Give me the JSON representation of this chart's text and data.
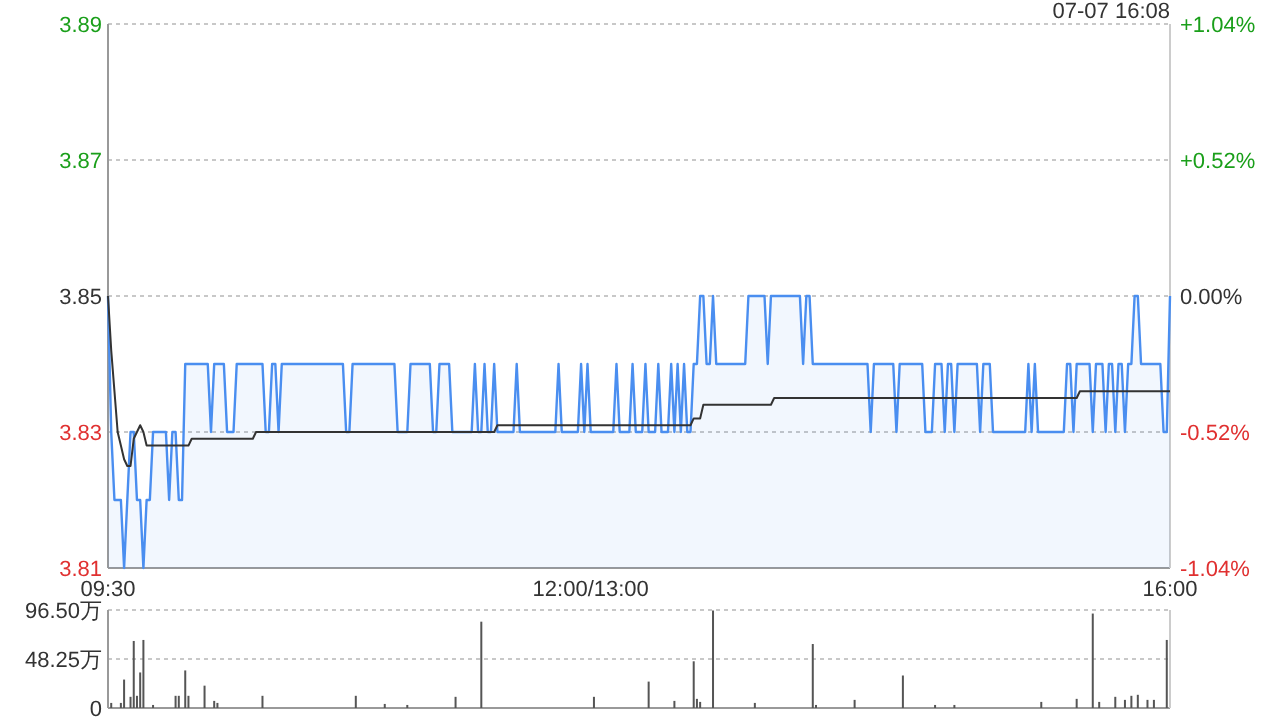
{
  "chart_data": [
    {
      "type": "line",
      "ylim": [
        3.81,
        3.89
      ],
      "y2lim": [
        -1.04,
        1.04
      ],
      "grid": "y",
      "categories": [
        "09:30",
        null,
        null,
        null,
        null,
        null,
        null,
        null,
        null,
        null,
        null,
        null,
        null,
        null,
        null,
        null,
        null,
        null,
        null,
        null,
        null,
        null,
        null,
        null,
        null,
        null,
        null,
        null,
        null,
        null,
        null,
        null,
        null,
        null,
        null,
        null,
        null,
        null,
        null,
        null,
        null,
        null,
        null,
        null,
        null,
        null,
        null,
        null,
        null,
        null,
        null,
        null,
        null,
        null,
        null,
        null,
        null,
        null,
        null,
        null,
        null,
        null,
        null,
        null,
        null,
        null,
        null,
        null,
        null,
        null,
        null,
        null,
        null,
        null,
        null,
        null,
        null,
        null,
        null,
        null,
        null,
        null,
        null,
        null,
        null,
        null,
        null,
        null,
        null,
        null,
        null,
        null,
        null,
        null,
        null,
        null,
        null,
        null,
        null,
        null,
        null,
        null,
        null,
        null,
        null,
        null,
        null,
        null,
        null,
        null,
        null,
        null,
        null,
        null,
        null,
        null,
        null,
        null,
        null,
        null,
        null,
        null,
        null,
        null,
        null,
        null,
        null,
        null,
        null,
        null,
        null,
        null,
        null,
        null,
        null,
        null,
        null,
        null,
        null,
        null,
        null,
        null,
        null,
        null,
        null,
        null,
        null,
        null,
        null,
        null,
        "12:00/13:00",
        null,
        null,
        null,
        null,
        null,
        null,
        null,
        null,
        null,
        null,
        null,
        null,
        null,
        null,
        null,
        null,
        null,
        null,
        null,
        null,
        null,
        null,
        null,
        null,
        null,
        null,
        null,
        null,
        null,
        null,
        null,
        null,
        null,
        null,
        null,
        null,
        null,
        null,
        null,
        null,
        null,
        null,
        null,
        null,
        null,
        null,
        null,
        null,
        null,
        null,
        null,
        null,
        null,
        null,
        null,
        null,
        null,
        null,
        null,
        null,
        null,
        null,
        null,
        null,
        null,
        null,
        null,
        null,
        null,
        null,
        null,
        null,
        null,
        null,
        null,
        null,
        null,
        null,
        null,
        null,
        null,
        null,
        null,
        null,
        null,
        null,
        null,
        null,
        null,
        null,
        null,
        null,
        null,
        null,
        null,
        null,
        null,
        null,
        null,
        null,
        null,
        null,
        null,
        null,
        null,
        null,
        null,
        null,
        null,
        null,
        null,
        null,
        null,
        null,
        null,
        null,
        null,
        null,
        null,
        null,
        null,
        null,
        null,
        null,
        null,
        null,
        null,
        null,
        null,
        null,
        null,
        null,
        null,
        null,
        null,
        null,
        null,
        null,
        null,
        null,
        null,
        null,
        null,
        null,
        null,
        null,
        null,
        null,
        null,
        null,
        null,
        null,
        null,
        null,
        null,
        null,
        null,
        null,
        null,
        null,
        null,
        null,
        null,
        null,
        null,
        null,
        null,
        null,
        null,
        null,
        null,
        null,
        null,
        null,
        null,
        null,
        null,
        null,
        null,
        "16:00"
      ],
      "yticks": [
        3.81,
        3.83,
        3.85,
        3.87,
        3.89
      ],
      "y2ticks": [
        {
          "value": -1.04,
          "label": "-1.04%"
        },
        {
          "value": -0.52,
          "label": "-0.52%"
        },
        {
          "value": 0,
          "label": "0.00%"
        },
        {
          "value": 0.52,
          "label": "+0.52%"
        },
        {
          "value": 1.04,
          "label": "+1.04%"
        }
      ],
      "annotations": [
        "07-07 16:08"
      ],
      "series": [
        {
          "type": "area",
          "color": "#4a8ef0",
          "values": [
            3.85,
            3.83,
            3.82,
            3.82,
            3.82,
            3.81,
            3.82,
            3.83,
            3.83,
            3.82,
            3.82,
            3.81,
            3.82,
            3.82,
            3.83,
            3.83,
            3.83,
            3.83,
            3.83,
            3.82,
            3.83,
            3.83,
            3.82,
            3.82,
            3.84,
            3.84,
            3.84,
            3.84,
            3.84,
            3.84,
            3.84,
            3.84,
            3.83,
            3.84,
            3.84,
            3.84,
            3.84,
            3.83,
            3.83,
            3.83,
            3.84,
            3.84,
            3.84,
            3.84,
            3.84,
            3.84,
            3.84,
            3.84,
            3.84,
            3.83,
            3.83,
            3.84,
            3.84,
            3.83,
            3.84,
            3.84,
            3.84,
            3.84,
            3.84,
            3.84,
            3.84,
            3.84,
            3.84,
            3.84,
            3.84,
            3.84,
            3.84,
            3.84,
            3.84,
            3.84,
            3.84,
            3.84,
            3.84,
            3.84,
            3.83,
            3.83,
            3.84,
            3.84,
            3.84,
            3.84,
            3.84,
            3.84,
            3.84,
            3.84,
            3.84,
            3.84,
            3.84,
            3.84,
            3.84,
            3.84,
            3.83,
            3.83,
            3.83,
            3.83,
            3.84,
            3.84,
            3.84,
            3.84,
            3.84,
            3.84,
            3.84,
            3.83,
            3.83,
            3.84,
            3.84,
            3.84,
            3.84,
            3.83,
            3.83,
            3.83,
            3.83,
            3.83,
            3.83,
            3.83,
            3.84,
            3.83,
            3.83,
            3.84,
            3.83,
            3.83,
            3.84,
            3.83,
            3.83,
            3.83,
            3.83,
            3.83,
            3.83,
            3.84,
            3.83,
            3.83,
            3.83,
            3.83,
            3.83,
            3.83,
            3.83,
            3.83,
            3.83,
            3.83,
            3.83,
            3.83,
            3.84,
            3.83,
            3.83,
            3.83,
            3.83,
            3.83,
            3.83,
            3.84,
            3.83,
            3.84,
            3.83,
            3.83,
            3.83,
            3.83,
            3.83,
            3.83,
            3.83,
            3.83,
            3.84,
            3.83,
            3.83,
            3.83,
            3.83,
            3.84,
            3.83,
            3.83,
            3.83,
            3.84,
            3.83,
            3.83,
            3.83,
            3.84,
            3.83,
            3.83,
            3.83,
            3.84,
            3.83,
            3.84,
            3.83,
            3.84,
            3.83,
            3.83,
            3.84,
            3.84,
            3.85,
            3.85,
            3.84,
            3.84,
            3.85,
            3.84,
            3.84,
            3.84,
            3.84,
            3.84,
            3.84,
            3.84,
            3.84,
            3.84,
            3.84,
            3.85,
            3.85,
            3.85,
            3.85,
            3.85,
            3.85,
            3.84,
            3.85,
            3.85,
            3.85,
            3.85,
            3.85,
            3.85,
            3.85,
            3.85,
            3.85,
            3.85,
            3.84,
            3.85,
            3.85,
            3.84,
            3.84,
            3.84,
            3.84,
            3.84,
            3.84,
            3.84,
            3.84,
            3.84,
            3.84,
            3.84,
            3.84,
            3.84,
            3.84,
            3.84,
            3.84,
            3.84,
            3.84,
            3.83,
            3.84,
            3.84,
            3.84,
            3.84,
            3.84,
            3.84,
            3.84,
            3.83,
            3.84,
            3.84,
            3.84,
            3.84,
            3.84,
            3.84,
            3.84,
            3.84,
            3.83,
            3.83,
            3.83,
            3.84,
            3.84,
            3.84,
            3.83,
            3.84,
            3.84,
            3.83,
            3.84,
            3.84,
            3.84,
            3.84,
            3.84,
            3.84,
            3.84,
            3.83,
            3.84,
            3.84,
            3.84,
            3.83,
            3.83,
            3.83,
            3.83,
            3.83,
            3.83,
            3.83,
            3.83,
            3.83,
            3.83,
            3.83,
            3.84,
            3.83,
            3.84,
            3.83,
            3.83,
            3.83,
            3.83,
            3.83,
            3.83,
            3.83,
            3.83,
            3.83,
            3.84,
            3.84,
            3.83,
            3.84,
            3.84,
            3.84,
            3.84,
            3.84,
            3.83,
            3.84,
            3.84,
            3.84,
            3.83,
            3.84,
            3.84,
            3.83,
            3.84,
            3.84,
            3.83,
            3.84,
            3.84,
            3.85,
            3.85,
            3.84,
            3.84,
            3.84,
            3.84,
            3.84,
            3.84,
            3.84,
            3.83,
            3.83,
            3.85
          ]
        },
        {
          "type": "line",
          "color": "#333333",
          "values": [
            3.85,
            3.842,
            3.836,
            3.83,
            3.828,
            3.826,
            3.825,
            3.825,
            3.829,
            3.83,
            3.831,
            3.83,
            3.828,
            3.828,
            3.828,
            3.828,
            3.828,
            3.828,
            3.828,
            3.828,
            3.828,
            3.828,
            3.828,
            3.828,
            3.828,
            3.828,
            3.829,
            3.829,
            3.829,
            3.829,
            3.829,
            3.829,
            3.829,
            3.829,
            3.829,
            3.829,
            3.829,
            3.829,
            3.829,
            3.829,
            3.829,
            3.829,
            3.829,
            3.829,
            3.829,
            3.829,
            3.83,
            3.83,
            3.83,
            3.83,
            3.83,
            3.83,
            3.83,
            3.83,
            3.83,
            3.83,
            3.83,
            3.83,
            3.83,
            3.83,
            3.83,
            3.83,
            3.83,
            3.83,
            3.83,
            3.83,
            3.83,
            3.83,
            3.83,
            3.83,
            3.83,
            3.83,
            3.83,
            3.83,
            3.83,
            3.83,
            3.83,
            3.83,
            3.83,
            3.83,
            3.83,
            3.83,
            3.83,
            3.83,
            3.83,
            3.83,
            3.83,
            3.83,
            3.83,
            3.83,
            3.83,
            3.83,
            3.83,
            3.83,
            3.83,
            3.83,
            3.83,
            3.83,
            3.83,
            3.83,
            3.83,
            3.83,
            3.83,
            3.83,
            3.83,
            3.83,
            3.83,
            3.83,
            3.83,
            3.83,
            3.83,
            3.83,
            3.83,
            3.83,
            3.83,
            3.83,
            3.83,
            3.83,
            3.83,
            3.83,
            3.83,
            3.831,
            3.831,
            3.831,
            3.831,
            3.831,
            3.831,
            3.831,
            3.831,
            3.831,
            3.831,
            3.831,
            3.831,
            3.831,
            3.831,
            3.831,
            3.831,
            3.831,
            3.831,
            3.831,
            3.831,
            3.831,
            3.831,
            3.831,
            3.831,
            3.831,
            3.831,
            3.831,
            3.831,
            3.831,
            3.831,
            3.831,
            3.831,
            3.831,
            3.831,
            3.831,
            3.831,
            3.831,
            3.831,
            3.831,
            3.831,
            3.831,
            3.831,
            3.831,
            3.831,
            3.831,
            3.831,
            3.831,
            3.831,
            3.831,
            3.831,
            3.831,
            3.831,
            3.831,
            3.831,
            3.831,
            3.831,
            3.831,
            3.831,
            3.831,
            3.831,
            3.831,
            3.832,
            3.832,
            3.832,
            3.834,
            3.834,
            3.834,
            3.834,
            3.834,
            3.834,
            3.834,
            3.834,
            3.834,
            3.834,
            3.834,
            3.834,
            3.834,
            3.834,
            3.834,
            3.834,
            3.834,
            3.834,
            3.834,
            3.834,
            3.834,
            3.834,
            3.835,
            3.835,
            3.835,
            3.835,
            3.835,
            3.835,
            3.835,
            3.835,
            3.835,
            3.835,
            3.835,
            3.835,
            3.835,
            3.835,
            3.835,
            3.835,
            3.835,
            3.835,
            3.835,
            3.835,
            3.835,
            3.835,
            3.835,
            3.835,
            3.835,
            3.835,
            3.835,
            3.835,
            3.835,
            3.835,
            3.835,
            3.835,
            3.835,
            3.835,
            3.835,
            3.835,
            3.835,
            3.835,
            3.835,
            3.835,
            3.835,
            3.835,
            3.835,
            3.835,
            3.835,
            3.835,
            3.835,
            3.835,
            3.835,
            3.835,
            3.835,
            3.835,
            3.835,
            3.835,
            3.835,
            3.835,
            3.835,
            3.835,
            3.835,
            3.835,
            3.835,
            3.835,
            3.835,
            3.835,
            3.835,
            3.835,
            3.835,
            3.835,
            3.835,
            3.835,
            3.835,
            3.835,
            3.835,
            3.835,
            3.835,
            3.835,
            3.835,
            3.835,
            3.835,
            3.835,
            3.835,
            3.835,
            3.835,
            3.835,
            3.835,
            3.835,
            3.835,
            3.835,
            3.835,
            3.835,
            3.835,
            3.835,
            3.835,
            3.835,
            3.835,
            3.836,
            3.836,
            3.836,
            3.836,
            3.836,
            3.836,
            3.836,
            3.836,
            3.836,
            3.836,
            3.836,
            3.836,
            3.836,
            3.836,
            3.836,
            3.836,
            3.836,
            3.836,
            3.836,
            3.836,
            3.836,
            3.836,
            3.836,
            3.836,
            3.836,
            3.836,
            3.836,
            3.836,
            3.836
          ]
        }
      ]
    },
    {
      "type": "bar",
      "ylim": [
        0,
        96.5
      ],
      "grid": "y",
      "tick_labels": "y",
      "color": "#555555",
      "categories": [
        null,
        null,
        null,
        null,
        null,
        null,
        null,
        null,
        null,
        null,
        null,
        null,
        null,
        null,
        null,
        null,
        null,
        null,
        null,
        null,
        null,
        null,
        null,
        null,
        null,
        null,
        null,
        null,
        null,
        null,
        null,
        null,
        null,
        null,
        null,
        null,
        null,
        null,
        null,
        null,
        null,
        null,
        null,
        null,
        null,
        null,
        null,
        null,
        null,
        null,
        null,
        null,
        null,
        null,
        null,
        null,
        null,
        null,
        null,
        null,
        null,
        null,
        null,
        null,
        null,
        null,
        null,
        null,
        null,
        null,
        null,
        null,
        null,
        null,
        null,
        null,
        null,
        null,
        null,
        null,
        null,
        null,
        null,
        null,
        null,
        null,
        null,
        null,
        null,
        null,
        null,
        null,
        null,
        null,
        null,
        null,
        null,
        null,
        null,
        null,
        null,
        null,
        null,
        null,
        null,
        null,
        null,
        null,
        null,
        null,
        null,
        null,
        null,
        null,
        null,
        null,
        null,
        null,
        null,
        null,
        null,
        null,
        null,
        null,
        null,
        null,
        null,
        null,
        null,
        null,
        null,
        null,
        null,
        null,
        null,
        null,
        null,
        null,
        null,
        null,
        null,
        null,
        null,
        null,
        null,
        null,
        null,
        null,
        null,
        null,
        null,
        null,
        null,
        null,
        null,
        null,
        null,
        null,
        null,
        null,
        null,
        null,
        null,
        null,
        null,
        null,
        null,
        null,
        null,
        null,
        null,
        null,
        null,
        null,
        null,
        null,
        null,
        null,
        null,
        null,
        null,
        null,
        null,
        null,
        null,
        null,
        null,
        null,
        null,
        null,
        null,
        null,
        null,
        null,
        null,
        null,
        null,
        null,
        null,
        null,
        null,
        null,
        null,
        null,
        null,
        null,
        null,
        null,
        null,
        null,
        null,
        null,
        null,
        null,
        null,
        null,
        null,
        null,
        null,
        null,
        null,
        null,
        null,
        null,
        null,
        null,
        null,
        null,
        null,
        null,
        null,
        null,
        null,
        null,
        null,
        null,
        null,
        null,
        null,
        null,
        null,
        null,
        null,
        null,
        null,
        null,
        null,
        null,
        null,
        null,
        null,
        null,
        null,
        null,
        null,
        null,
        null,
        null,
        null,
        null,
        null,
        null,
        null,
        null,
        null,
        null,
        null,
        null,
        null,
        null,
        null,
        null,
        null,
        null,
        null,
        null,
        null,
        null,
        null,
        null,
        null,
        null,
        null,
        null,
        null,
        null,
        null,
        null,
        null,
        null,
        null,
        null,
        null,
        null,
        null,
        null,
        null,
        null,
        null,
        null,
        null,
        null,
        null,
        null,
        null,
        null,
        null,
        null,
        null,
        null,
        null,
        null,
        null,
        null,
        null,
        null,
        null,
        null,
        null,
        null,
        null,
        null,
        null,
        null,
        null,
        null,
        null,
        null,
        null,
        null,
        null
      ],
      "yticks": [
        0,
        {
          "value": 48.25,
          "label": "48.25万"
        },
        {
          "value": 96.5,
          "label": "96.50万"
        }
      ],
      "values": [
        null,
        5,
        null,
        null,
        5,
        28,
        null,
        11,
        66,
        12,
        35,
        67,
        null,
        null,
        3,
        null,
        null,
        null,
        null,
        null,
        null,
        12,
        12,
        null,
        37,
        12,
        null,
        null,
        null,
        null,
        22,
        null,
        null,
        7,
        5,
        null,
        null,
        null,
        null,
        null,
        null,
        null,
        null,
        null,
        null,
        null,
        null,
        null,
        12,
        null,
        null,
        null,
        null,
        null,
        null,
        null,
        null,
        null,
        null,
        null,
        null,
        null,
        null,
        null,
        null,
        null,
        null,
        null,
        null,
        null,
        null,
        null,
        null,
        null,
        null,
        null,
        null,
        12,
        null,
        null,
        null,
        null,
        null,
        null,
        null,
        null,
        4,
        null,
        null,
        null,
        null,
        null,
        null,
        3,
        null,
        null,
        null,
        null,
        null,
        null,
        null,
        null,
        null,
        null,
        null,
        null,
        null,
        null,
        11,
        null,
        null,
        null,
        null,
        null,
        null,
        null,
        85,
        null,
        null,
        null,
        null,
        null,
        null,
        null,
        null,
        null,
        null,
        null,
        null,
        null,
        null,
        null,
        null,
        null,
        null,
        null,
        null,
        null,
        null,
        null,
        null,
        null,
        null,
        null,
        null,
        null,
        null,
        null,
        null,
        null,
        null,
        11,
        null,
        null,
        null,
        null,
        null,
        null,
        null,
        null,
        null,
        null,
        null,
        null,
        null,
        null,
        null,
        null,
        26,
        null,
        null,
        null,
        null,
        null,
        null,
        null,
        7,
        null,
        null,
        null,
        null,
        null,
        46,
        9,
        6,
        null,
        null,
        null,
        96,
        null,
        null,
        null,
        null,
        null,
        null,
        null,
        null,
        null,
        null,
        null,
        null,
        5,
        null,
        null,
        null,
        null,
        null,
        null,
        null,
        null,
        null,
        null,
        null,
        null,
        null,
        null,
        null,
        null,
        null,
        63,
        3,
        null,
        null,
        null,
        null,
        null,
        null,
        null,
        null,
        null,
        null,
        null,
        8,
        null,
        null,
        null,
        null,
        null,
        null,
        null,
        null,
        null,
        null,
        null,
        null,
        null,
        null,
        32,
        null,
        null,
        null,
        null,
        null,
        null,
        null,
        null,
        null,
        3,
        null,
        null,
        null,
        null,
        null,
        3,
        null,
        null,
        null,
        null,
        null,
        null,
        null,
        null,
        null,
        null,
        null,
        null,
        null,
        null,
        null,
        null,
        null,
        null,
        null,
        null,
        null,
        null,
        null,
        null,
        null,
        null,
        6,
        null,
        null,
        null,
        null,
        null,
        null,
        null,
        null,
        null,
        null,
        9,
        null,
        null,
        null,
        null,
        93,
        null,
        6,
        null,
        null,
        null,
        null,
        11,
        null,
        null,
        8,
        null,
        12,
        null,
        13,
        null,
        null,
        8,
        null,
        8,
        null,
        null,
        null,
        67,
        null
      ]
    }
  ]
}
